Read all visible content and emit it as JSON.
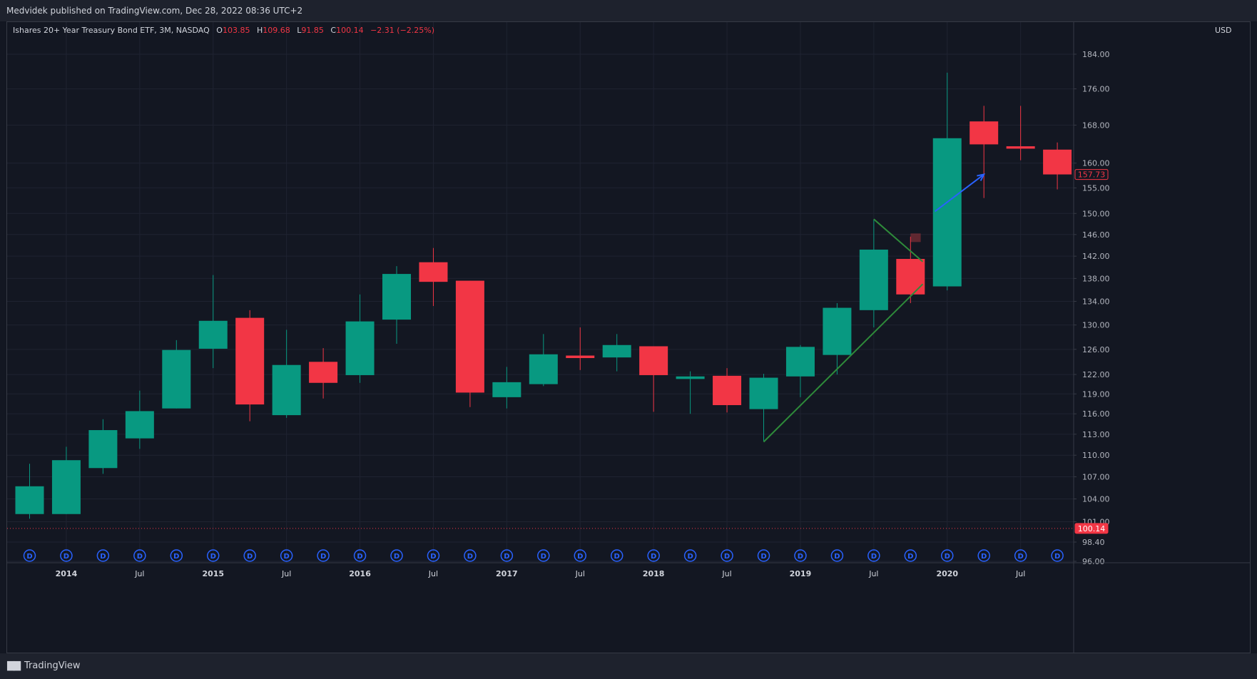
{
  "header": {
    "publisher": "Medvidek published on TradingView.com, Dec 28, 2022 08:36 UTC+2"
  },
  "legend": {
    "symbol": "Ishares 20+ Year Treasury Bond ETF, 3M, NASDAQ",
    "open_label": "O",
    "open": "103.85",
    "high_label": "H",
    "high": "109.68",
    "low_label": "L",
    "low": "91.85",
    "close_label": "C",
    "close": "100.14",
    "change": "−2.31 (−2.25%)"
  },
  "price_axis": {
    "currency": "USD"
  },
  "footer": {
    "brand": "TradingView",
    "logo_icon": "tradingview-logo-icon"
  },
  "colors": {
    "up": "#089981",
    "down": "#f23645",
    "trendline": "#2e8b3a",
    "arrow": "#2962ff",
    "grid": "#1f2331",
    "event_badge": "#2962ff"
  },
  "chart_data": {
    "type": "candlestick",
    "interval": "3M",
    "scale": "log",
    "ylim": [
      96,
      190
    ],
    "yticks": [
      96,
      98.4,
      101,
      104,
      107,
      110,
      113,
      116,
      119,
      122,
      126,
      130,
      134,
      138,
      142,
      146,
      150,
      155,
      160,
      168,
      176,
      184
    ],
    "ytick_labels": [
      "96.00",
      "98.40",
      "101.00",
      "104.00",
      "107.00",
      "110.00",
      "113.00",
      "116.00",
      "119.00",
      "122.00",
      "126.00",
      "130.00",
      "134.00",
      "138.00",
      "142.00",
      "146.00",
      "150.00",
      "155.00",
      "160.00",
      "168.00",
      "176.00",
      "184.00"
    ],
    "xticks": [
      {
        "label": "2014",
        "date": "2014-01",
        "bold": true
      },
      {
        "label": "Jul",
        "date": "2014-07",
        "bold": false
      },
      {
        "label": "2015",
        "date": "2015-01",
        "bold": true
      },
      {
        "label": "Jul",
        "date": "2015-07",
        "bold": false
      },
      {
        "label": "2016",
        "date": "2016-01",
        "bold": true
      },
      {
        "label": "Jul",
        "date": "2016-07",
        "bold": false
      },
      {
        "label": "2017",
        "date": "2017-01",
        "bold": true
      },
      {
        "label": "Jul",
        "date": "2017-07",
        "bold": false
      },
      {
        "label": "2018",
        "date": "2018-01",
        "bold": true
      },
      {
        "label": "Jul",
        "date": "2018-07",
        "bold": false
      },
      {
        "label": "2019",
        "date": "2019-01",
        "bold": true
      },
      {
        "label": "Jul",
        "date": "2019-07",
        "bold": false
      },
      {
        "label": "2020",
        "date": "2020-01",
        "bold": true
      },
      {
        "label": "Jul",
        "date": "2020-07",
        "bold": false
      }
    ],
    "candles": [
      {
        "date": "2013-10",
        "open": 102.0,
        "high": 108.8,
        "low": 101.4,
        "close": 105.7
      },
      {
        "date": "2014-01",
        "open": 102.0,
        "high": 111.2,
        "low": 102.0,
        "close": 109.3
      },
      {
        "date": "2014-04",
        "open": 108.2,
        "high": 115.2,
        "low": 107.4,
        "close": 113.6
      },
      {
        "date": "2014-07",
        "open": 112.4,
        "high": 119.5,
        "low": 110.9,
        "close": 116.4
      },
      {
        "date": "2014-10",
        "open": 116.8,
        "high": 127.5,
        "low": 116.8,
        "close": 125.9
      },
      {
        "date": "2015-01",
        "open": 126.1,
        "high": 138.6,
        "low": 123.0,
        "close": 130.7
      },
      {
        "date": "2015-04",
        "open": 131.2,
        "high": 132.5,
        "low": 114.9,
        "close": 117.4
      },
      {
        "date": "2015-07",
        "open": 115.8,
        "high": 129.2,
        "low": 115.4,
        "close": 123.5
      },
      {
        "date": "2015-10",
        "open": 124.0,
        "high": 126.2,
        "low": 118.3,
        "close": 120.7
      },
      {
        "date": "2016-01",
        "open": 121.9,
        "high": 135.2,
        "low": 120.7,
        "close": 130.6
      },
      {
        "date": "2016-04",
        "open": 130.9,
        "high": 140.2,
        "low": 126.9,
        "close": 138.8
      },
      {
        "date": "2016-07",
        "open": 140.9,
        "high": 143.5,
        "low": 133.2,
        "close": 137.4
      },
      {
        "date": "2016-10",
        "open": 137.6,
        "high": 137.6,
        "low": 117.0,
        "close": 119.2
      },
      {
        "date": "2017-01",
        "open": 118.5,
        "high": 123.2,
        "low": 116.8,
        "close": 120.8
      },
      {
        "date": "2017-04",
        "open": 120.5,
        "high": 128.5,
        "low": 120.2,
        "close": 125.2
      },
      {
        "date": "2017-07",
        "open": 125.0,
        "high": 129.6,
        "low": 122.7,
        "close": 124.6
      },
      {
        "date": "2017-10",
        "open": 124.7,
        "high": 128.5,
        "low": 122.5,
        "close": 126.7
      },
      {
        "date": "2018-01",
        "open": 126.5,
        "high": 126.5,
        "low": 116.3,
        "close": 121.9
      },
      {
        "date": "2018-04",
        "open": 121.3,
        "high": 122.5,
        "low": 116.0,
        "close": 121.7
      },
      {
        "date": "2018-07",
        "open": 121.8,
        "high": 123.0,
        "low": 116.2,
        "close": 117.3
      },
      {
        "date": "2018-10",
        "open": 116.7,
        "high": 122.1,
        "low": 111.9,
        "close": 121.5
      },
      {
        "date": "2019-01",
        "open": 121.7,
        "high": 126.7,
        "low": 118.5,
        "close": 126.4
      },
      {
        "date": "2019-04",
        "open": 125.1,
        "high": 133.7,
        "low": 122.0,
        "close": 132.9
      },
      {
        "date": "2019-07",
        "open": 132.5,
        "high": 148.9,
        "low": 129.6,
        "close": 143.2
      },
      {
        "date": "2019-10",
        "open": 141.5,
        "high": 145.6,
        "low": 133.7,
        "close": 135.2
      },
      {
        "date": "2020-01",
        "open": 136.6,
        "high": 179.7,
        "low": 135.9,
        "close": 165.2
      },
      {
        "date": "2020-04",
        "open": 168.8,
        "high": 172.2,
        "low": 153.0,
        "close": 163.9
      },
      {
        "date": "2020-07",
        "open": 163.5,
        "high": 172.2,
        "low": 160.6,
        "close": 163.0
      },
      {
        "date": "2020-10",
        "open": 162.8,
        "high": 164.3,
        "low": 154.7,
        "close": 157.7
      }
    ],
    "last_price_label": "157.73",
    "current_price_label": "100.14",
    "current_price": 100.14,
    "event_badge_label": "D",
    "drawings": {
      "trendline_lower": [
        {
          "date": "2018-10",
          "price": 111.9
        },
        {
          "date": "2019-11",
          "price": 137.0
        }
      ],
      "trendline_upper": [
        {
          "date": "2019-07",
          "price": 148.9
        },
        {
          "date": "2019-11",
          "price": 141.0
        }
      ],
      "arrow": [
        {
          "date": "2019-12",
          "price": 150.4
        },
        {
          "date": "2020-04",
          "price": 157.7
        }
      ],
      "resistance_box": {
        "date_from": "2019-10",
        "date_to": "2019-12",
        "price_from": 144.6,
        "price_to": 146.2
      }
    }
  }
}
